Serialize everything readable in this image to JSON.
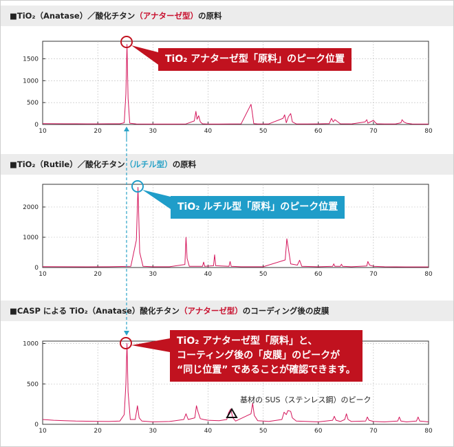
{
  "sections": [
    {
      "prefix": "■TiO₂（Anatase）／酸化チタン",
      "highlight": "（アナターゼ型）",
      "suffix": "の原料",
      "highlight_color": "#c8102e"
    },
    {
      "prefix": "■TiO₂（Rutile）／酸化チタン",
      "highlight": "（ルチル型）",
      "suffix": "の原料",
      "highlight_color": "#2ba3c7"
    },
    {
      "prefix": "■CASP による TiO₂（Anatase）酸化チタン",
      "highlight": "（アナターゼ型）",
      "suffix": "のコーディング後の皮膜",
      "highlight_color": "#c8102e"
    }
  ],
  "callouts": {
    "anatase": {
      "text": "TiO₂ アナターゼ型「原料」のピーク位置",
      "color": "#c1121f"
    },
    "rutile": {
      "text": "TiO₂ ルチル型「原料」のピーク位置",
      "color": "#1f9dc9"
    },
    "coating": {
      "lines": [
        "TiO₂ アナターゼ型「原料」と、",
        "コーティング後の「皮膜」のピークが",
        "“同じ位置” であることが確認できます。"
      ],
      "color": "#c1121f"
    }
  },
  "annotation": {
    "text": "基材の SUS（ステンレス鋼）のピーク"
  },
  "chart_data": [
    {
      "type": "line",
      "title": "",
      "xlabel": "",
      "ylabel": "",
      "xlim": [
        10,
        80
      ],
      "ylim": [
        0,
        1900
      ],
      "xticks": [
        10,
        20,
        30,
        40,
        50,
        60,
        70,
        80
      ],
      "yticks": [
        0,
        500,
        1000,
        1500
      ],
      "grid": true,
      "line_color": "#d4145a",
      "series": [
        {
          "x": [
            10,
            12,
            14,
            16,
            18,
            20,
            22,
            24,
            24.8,
            25.1,
            25.3,
            25.5,
            25.8,
            27,
            30,
            33,
            36,
            37.5,
            37.8,
            38.0,
            38.3,
            38.6,
            39,
            40,
            42,
            44,
            46,
            47.8,
            48.0,
            48.3,
            49,
            51,
            53.6,
            53.9,
            54.2,
            54.6,
            55.0,
            55.3,
            56,
            58,
            60,
            62,
            62.4,
            62.7,
            63.0,
            64,
            66,
            68.5,
            68.8,
            69,
            70.0,
            70.3,
            70.6,
            72,
            74,
            75.0,
            75.2,
            75.5,
            76.0,
            77,
            80
          ],
          "y": [
            20,
            18,
            16,
            15,
            14,
            14,
            15,
            16,
            40,
            700,
            1830,
            600,
            30,
            12,
            10,
            10,
            12,
            80,
            300,
            120,
            200,
            60,
            15,
            10,
            10,
            12,
            14,
            460,
            300,
            20,
            12,
            12,
            140,
            220,
            40,
            180,
            250,
            60,
            12,
            12,
            14,
            20,
            140,
            60,
            110,
            15,
            12,
            60,
            110,
            30,
            95,
            50,
            15,
            12,
            12,
            40,
            110,
            60,
            30,
            12,
            10
          ]
        }
      ]
    },
    {
      "type": "line",
      "title": "",
      "xlabel": "",
      "ylabel": "",
      "xlim": [
        10,
        80
      ],
      "ylim": [
        0,
        2750
      ],
      "xticks": [
        10,
        20,
        30,
        40,
        50,
        60,
        70,
        80
      ],
      "yticks": [
        0,
        1000,
        2000
      ],
      "grid": true,
      "line_color": "#d4145a",
      "series": [
        {
          "x": [
            10,
            14,
            18,
            22,
            26,
            27.0,
            27.3,
            27.6,
            28.2,
            30,
            33,
            35.8,
            36.0,
            36.2,
            36.6,
            39,
            39.2,
            39.4,
            41,
            41.2,
            41.4,
            43.8,
            44.0,
            44.2,
            46,
            50,
            54.0,
            54.3,
            54.6,
            55.0,
            56.2,
            56.6,
            57.0,
            60,
            62.6,
            62.8,
            63.0,
            64,
            64.2,
            64.4,
            66,
            68.8,
            69.0,
            69.3,
            70,
            72,
            76,
            80
          ],
          "y": [
            30,
            25,
            22,
            25,
            40,
            900,
            2650,
            500,
            40,
            25,
            25,
            100,
            1000,
            300,
            40,
            40,
            180,
            40,
            60,
            420,
            60,
            40,
            200,
            40,
            25,
            25,
            250,
            950,
            600,
            120,
            80,
            240,
            40,
            25,
            40,
            120,
            40,
            40,
            110,
            40,
            25,
            50,
            200,
            80,
            40,
            25,
            20,
            20
          ]
        }
      ]
    },
    {
      "type": "line",
      "title": "",
      "xlabel": "",
      "ylabel": "",
      "xlim": [
        10,
        80
      ],
      "ylim": [
        0,
        1030
      ],
      "xticks": [
        10,
        20,
        30,
        40,
        50,
        60,
        70,
        80
      ],
      "yticks": [
        0,
        500,
        1000
      ],
      "grid": true,
      "line_color": "#d4145a",
      "series": [
        {
          "x": [
            10,
            12,
            14,
            16,
            18,
            20,
            22,
            24,
            24.8,
            25.1,
            25.3,
            25.5,
            25.9,
            26.8,
            27.2,
            27.5,
            28,
            30,
            33,
            35.6,
            36.0,
            36.4,
            37.6,
            37.9,
            38.2,
            38.6,
            39.2,
            40,
            42,
            43.4,
            43.7,
            44.1,
            44.5,
            45,
            47.8,
            48.1,
            48.4,
            49,
            51,
            53.4,
            53.8,
            54.2,
            54.5,
            55.0,
            55.3,
            56,
            58,
            60,
            62.6,
            62.9,
            63.2,
            64,
            64.8,
            65.1,
            65.4,
            66,
            68.6,
            68.9,
            69.2,
            70,
            72,
            74.4,
            74.7,
            75,
            76,
            77.8,
            78.1,
            78.4,
            80
          ],
          "y": [
            60,
            50,
            45,
            40,
            38,
            36,
            35,
            40,
            120,
            500,
            1000,
            400,
            60,
            60,
            230,
            80,
            40,
            30,
            35,
            60,
            130,
            60,
            80,
            230,
            150,
            70,
            60,
            50,
            45,
            60,
            140,
            190,
            80,
            40,
            130,
            260,
            110,
            45,
            35,
            60,
            150,
            120,
            170,
            160,
            80,
            40,
            35,
            30,
            50,
            100,
            50,
            35,
            60,
            130,
            60,
            35,
            40,
            90,
            50,
            35,
            30,
            40,
            90,
            40,
            30,
            40,
            90,
            40,
            30
          ]
        }
      ]
    }
  ]
}
